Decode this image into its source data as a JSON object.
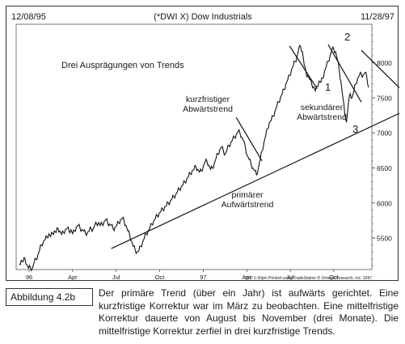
{
  "chart_data": {
    "type": "line",
    "title": "(*DWI X) Dow Industrials",
    "subtitle": "Drei Ausprägungen von Trends",
    "date_left": "12/08/95",
    "date_right": "11/28/97",
    "footer": "3/02  1:30pm Printed using TradeStation ® Omega Research, Inc. 1997",
    "x_labels": [
      "96",
      "Apr",
      "Jul",
      "Oct",
      "97",
      "Apr",
      "Jul",
      "Oct"
    ],
    "y_ticks": [
      5500,
      6000,
      6500,
      7000,
      7500,
      8000
    ],
    "ylim": [
      5050,
      8550
    ],
    "grid": false,
    "series": [
      {
        "values": [
          5130,
          5180,
          5160,
          5210,
          5120,
          5070,
          5080,
          5060,
          5150,
          5200,
          5250,
          5330,
          5400,
          5450,
          5480,
          5510,
          5560,
          5520,
          5570,
          5600,
          5580,
          5640,
          5600,
          5550,
          5580,
          5620,
          5640,
          5600,
          5620,
          5560,
          5600,
          5660,
          5680,
          5640,
          5620,
          5600,
          5560,
          5580,
          5600,
          5640,
          5620,
          5680,
          5700,
          5720,
          5680,
          5700,
          5730,
          5760,
          5720,
          5700,
          5680,
          5630,
          5650,
          5680,
          5720,
          5760,
          5780,
          5740,
          5680,
          5600,
          5540,
          5460,
          5380,
          5330,
          5300,
          5320,
          5380,
          5440,
          5500,
          5560,
          5600,
          5640,
          5700,
          5740,
          5780,
          5820,
          5850,
          5880,
          5910,
          5940,
          5960,
          6000,
          6020,
          6060,
          6090,
          6120,
          6160,
          6200,
          6230,
          6260,
          6300,
          6340,
          6380,
          6420,
          6460,
          6480,
          6520,
          6480,
          6440,
          6460,
          6520,
          6580,
          6600,
          6540,
          6480,
          6500,
          6560,
          6640,
          6700,
          6760,
          6800,
          6740,
          6700,
          6760,
          6820,
          6860,
          6900,
          6940,
          6980,
          7020,
          7000,
          6940,
          6880,
          6780,
          6680,
          6620,
          6560,
          6500,
          6460,
          6400,
          6500,
          6620,
          6740,
          6860,
          6960,
          7060,
          7150,
          7180,
          7240,
          7300,
          7380,
          7440,
          7500,
          7560,
          7620,
          7700,
          7760,
          7820,
          7900,
          7960,
          8020,
          8080,
          8200,
          8230,
          8160,
          7960,
          7850,
          7820,
          7760,
          7700,
          7660,
          7600,
          7660,
          7740,
          7720,
          7780,
          7880,
          7950,
          8020,
          8100,
          8180,
          8200,
          8160,
          8050,
          7900,
          7720,
          7500,
          7280,
          7160,
          7420,
          7560,
          7500,
          7600,
          7700,
          7780,
          7820,
          7840,
          7820,
          7860,
          7800,
          7650
        ]
      }
    ],
    "annotations": [
      "kurzfristiger\nAbwärtstrend",
      "sekundärer\nAbwärtstrend",
      "primärer\nAufwärtstrend",
      "1",
      "2",
      "3"
    ]
  },
  "caption": {
    "label": "Abbildung 4.2b",
    "text": "Der primäre Trend (über ein Jahr) ist aufwärts gerichtet. Eine kurzfristige Korrektur war im März zu beobachten. Eine mittelfristige Korrektur dauerte von August bis November (drei Monate). Die mittelfristige Korrektur zerfiel in drei kurzfristige Trends."
  },
  "colors": {
    "line": "#111111",
    "frame": "#333333",
    "background": "#ffffff"
  }
}
